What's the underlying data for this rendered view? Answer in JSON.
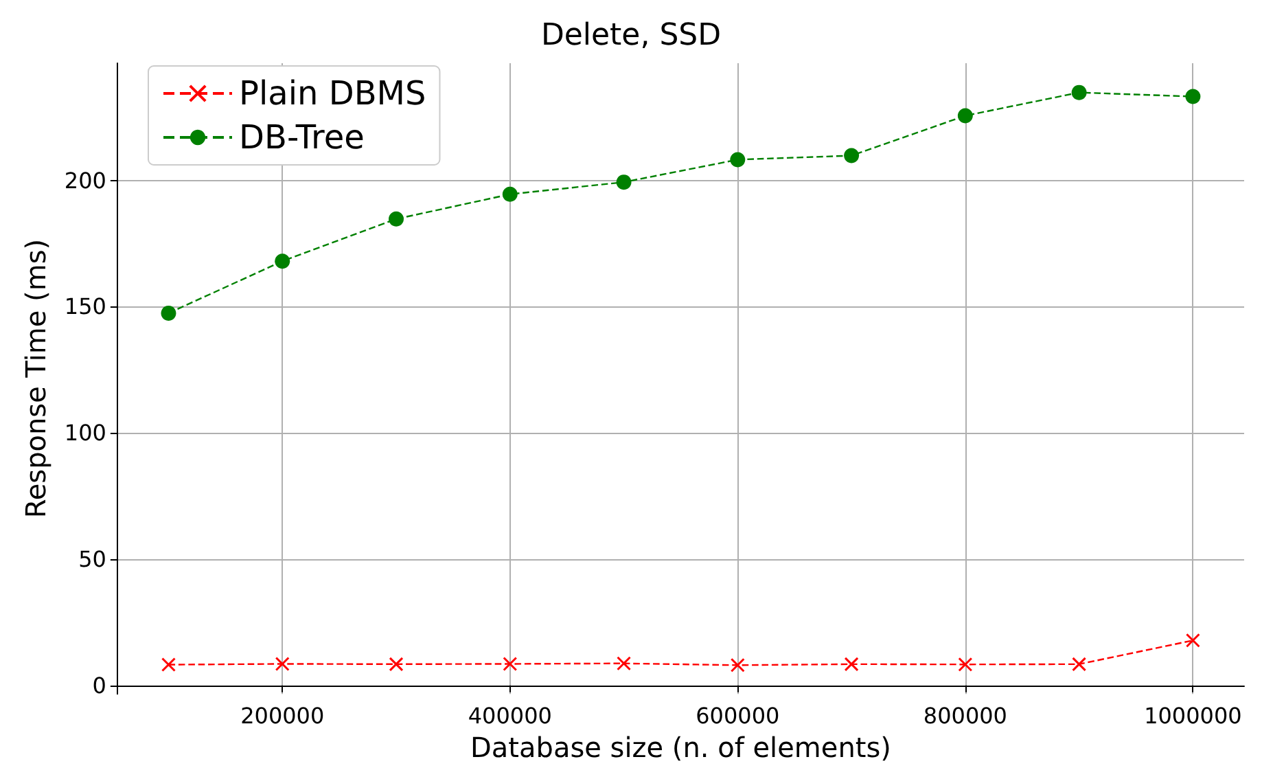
{
  "chart_data": {
    "type": "line",
    "title": "Delete, SSD",
    "xlabel": "Database size (n. of elements)",
    "ylabel": "Response Time (ms)",
    "x": [
      100000,
      200000,
      300000,
      400000,
      500000,
      600000,
      700000,
      800000,
      900000,
      1000000
    ],
    "series": [
      {
        "name": "Plain DBMS",
        "color": "#ff0000",
        "marker": "cross",
        "values": [
          8.2,
          8.5,
          8.4,
          8.5,
          8.7,
          8.0,
          8.4,
          8.3,
          8.4,
          17.8
        ]
      },
      {
        "name": "DB-Tree",
        "color": "#008000",
        "marker": "circle",
        "values": [
          147.4,
          168,
          184.7,
          194.5,
          199.3,
          208.2,
          209.8,
          225.6,
          234.8,
          233.2
        ]
      }
    ],
    "xlim": [
      55000,
      1045000
    ],
    "ylim": [
      -3.4,
      246.4
    ],
    "xticks": [
      200000,
      400000,
      600000,
      800000,
      1000000
    ],
    "yticks": [
      0,
      50,
      100,
      150,
      200
    ],
    "grid": true,
    "legend": "top left",
    "line_style": "dashed"
  }
}
